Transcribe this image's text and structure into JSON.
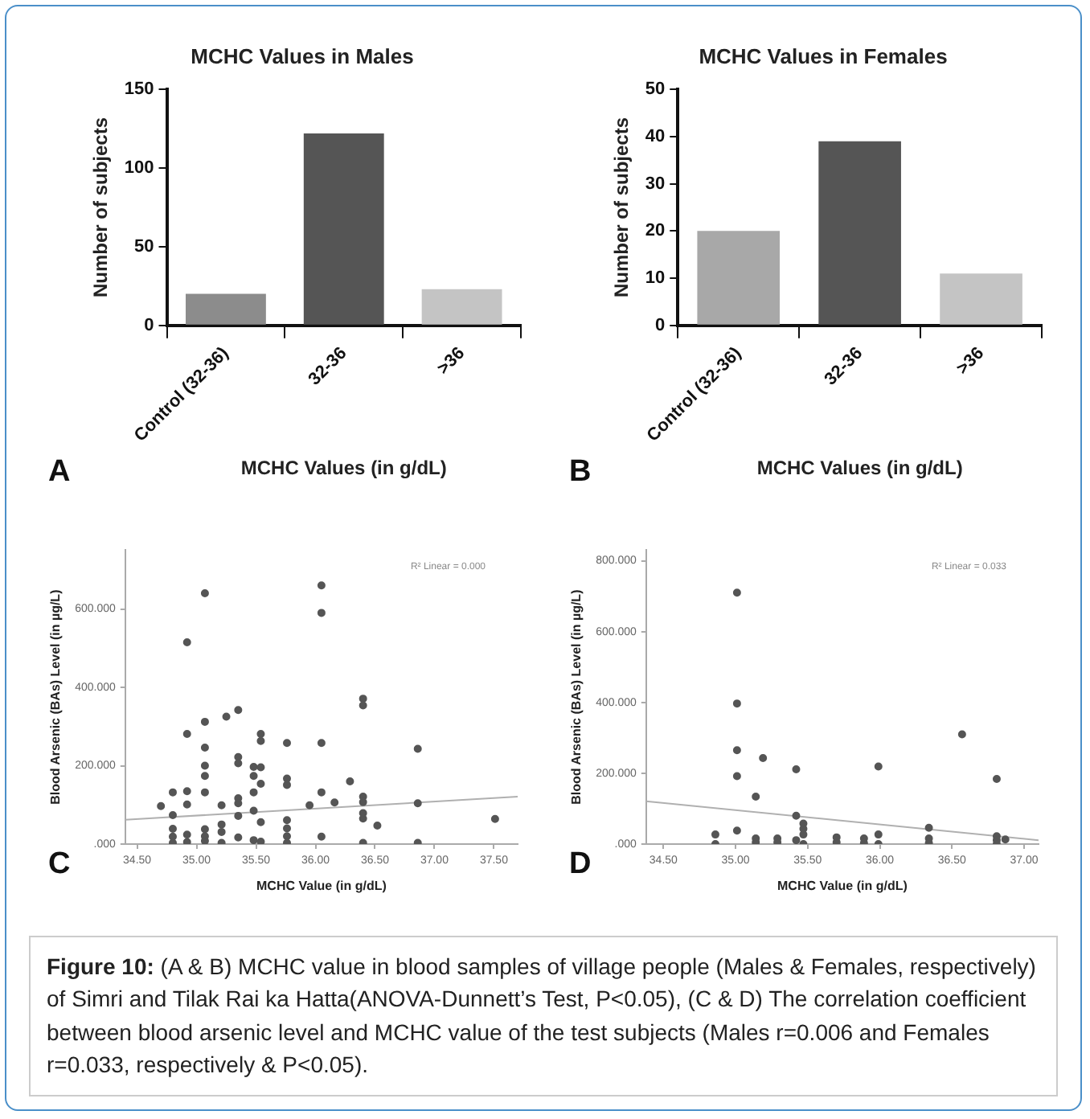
{
  "chart_data": [
    {
      "type": "bar",
      "title": "MCHC Values in Males",
      "xlabel": "MCHC Values (in g/dL)",
      "ylabel": "Number of subjects",
      "categories": [
        "Control (32-36)",
        "32-36",
        ">36"
      ],
      "values": [
        20,
        122,
        23
      ],
      "colors": [
        "#8c8c8c",
        "#555555",
        "#c4c4c4"
      ],
      "ylim": [
        0,
        150
      ],
      "yticks": [
        0,
        50,
        100,
        150
      ],
      "grid": false,
      "legend": false,
      "annotations": [
        "A"
      ]
    },
    {
      "type": "bar",
      "title": "MCHC Values in Females",
      "xlabel": "MCHC Values (in g/dL)",
      "ylabel": "Number of subjects",
      "categories": [
        "Control (32-36)",
        "32-36",
        ">36"
      ],
      "values": [
        20,
        39,
        11
      ],
      "colors": [
        "#a8a8a8",
        "#555555",
        "#c4c4c4"
      ],
      "ylim": [
        0,
        50
      ],
      "yticks": [
        0,
        10,
        20,
        30,
        40,
        50
      ],
      "grid": false,
      "legend": false,
      "annotations": [
        "B"
      ]
    },
    {
      "type": "scatter",
      "xlabel": "MCHC Value (in g/dL)",
      "ylabel": "Blood Arsenic (BAs) Level (in µg/L)",
      "xlim": [
        34.4,
        37.7
      ],
      "xticks": [
        {
          "value": 34.5,
          "label": "34.50"
        },
        {
          "value": 35,
          "label": "35.00"
        },
        {
          "value": 35.5,
          "label": "35.50"
        },
        {
          "value": 36,
          "label": "36.00"
        },
        {
          "value": 36.5,
          "label": "36.50"
        },
        {
          "value": 37,
          "label": "37.00"
        },
        {
          "value": 37.5,
          "label": "37.50"
        }
      ],
      "ylim": [
        0,
        750
      ],
      "yticks": [
        {
          "value": 0,
          "label": ".000"
        },
        {
          "value": 200,
          "label": "200.000"
        },
        {
          "value": 400,
          "label": "400.000"
        },
        {
          "value": 600,
          "label": "600.000"
        }
      ],
      "grid": false,
      "legend": false,
      "series": [
        {
          "type": "scatter",
          "marker": "circle",
          "color": "#555555",
          "x": [
            34.7,
            34.8,
            34.8,
            34.8,
            34.8,
            34.8,
            34.92,
            34.92,
            34.92,
            34.92,
            34.92,
            34.92,
            35.07,
            35.07,
            35.07,
            35.07,
            35.07,
            35.07,
            35.07,
            35.07,
            35.07,
            35.21,
            35.21,
            35.21,
            35.21,
            35.25,
            35.35,
            35.35,
            35.35,
            35.35,
            35.35,
            35.35,
            35.35,
            35.48,
            35.48,
            35.48,
            35.48,
            35.48,
            35.54,
            35.54,
            35.54,
            35.54,
            35.54,
            35.54,
            35.76,
            35.76,
            35.76,
            35.76,
            35.76,
            35.76,
            35.76,
            35.95,
            36.05,
            36.05,
            36.05,
            36.05,
            36.05,
            36.16,
            36.29,
            36.4,
            36.4,
            36.4,
            36.4,
            36.4,
            36.4,
            36.4,
            36.52,
            36.86,
            36.86,
            36.86,
            37.51
          ],
          "values": [
            97,
            132,
            74,
            39,
            19,
            3,
            515,
            281,
            135,
            101,
            24,
            5,
            640,
            312,
            246,
            200,
            174,
            132,
            38,
            20,
            8,
            99,
            50,
            31,
            3,
            325,
            342,
            222,
            206,
            117,
            104,
            72,
            17,
            197,
            174,
            132,
            85,
            10,
            281,
            263,
            196,
            154,
            56,
            6,
            258,
            167,
            151,
            61,
            40,
            20,
            3,
            99,
            660,
            590,
            258,
            132,
            19,
            106,
            160,
            371,
            354,
            121,
            107,
            79,
            65,
            3,
            47,
            243,
            104,
            3,
            64
          ]
        },
        {
          "type": "line",
          "marker": "none",
          "color": "#b0b0b0",
          "x": [
            34.4,
            37.7
          ],
          "values": [
            62,
            121
          ]
        }
      ],
      "annotations": [
        "C",
        "R² Linear = 0.000"
      ]
    },
    {
      "type": "scatter",
      "xlabel": "MCHC Value (in g/dL)",
      "ylabel": "Blood Arsenic (BAs) Level (in µg/L)",
      "xlim": [
        34.38,
        37.1
      ],
      "xticks": [
        {
          "value": 34.5,
          "label": "34.50"
        },
        {
          "value": 35,
          "label": "35.00"
        },
        {
          "value": 35.5,
          "label": "35.50"
        },
        {
          "value": 36,
          "label": "36.00"
        },
        {
          "value": 36.5,
          "label": "36.50"
        },
        {
          "value": 37,
          "label": "37.00"
        }
      ],
      "ylim": [
        0,
        830
      ],
      "yticks": [
        {
          "value": 0,
          "label": ".000"
        },
        {
          "value": 200,
          "label": "200.000"
        },
        {
          "value": 400,
          "label": "400.000"
        },
        {
          "value": 600,
          "label": "600.000"
        },
        {
          "value": 800,
          "label": "800.000"
        }
      ],
      "grid": false,
      "legend": false,
      "series": [
        {
          "type": "scatter",
          "marker": "circle",
          "color": "#555555",
          "x": [
            34.86,
            34.86,
            35.01,
            35.01,
            35.01,
            35.01,
            35.01,
            35.14,
            35.14,
            35.14,
            35.19,
            35.29,
            35.29,
            35.42,
            35.42,
            35.42,
            35.47,
            35.47,
            35.47,
            35.47,
            35.7,
            35.7,
            35.89,
            35.89,
            35.99,
            35.99,
            35.99,
            36.34,
            36.34,
            36.34,
            36.57,
            36.81,
            36.81,
            36.81,
            36.81,
            36.87
          ],
          "values": [
            27,
            0,
            710,
            397,
            265,
            192,
            38,
            134,
            16,
            5,
            243,
            16,
            5,
            211,
            80,
            11,
            58,
            43,
            27,
            0,
            19,
            5,
            16,
            3,
            219,
            27,
            0,
            46,
            16,
            3,
            310,
            184,
            22,
            11,
            0,
            13
          ]
        },
        {
          "type": "line",
          "marker": "none",
          "color": "#b0b0b0",
          "x": [
            34.38,
            37.1
          ],
          "values": [
            121,
            11
          ]
        }
      ],
      "annotations": [
        "D",
        "R² Linear = 0.033",
        "Figure 10: (A & B) MCHC value in blood samples of village people (Males & Females, respectively) of Simri and Tilak Rai ka Hatta(ANOVA-Dunnett’s Test, P<0.05), (C & D) The correlation coefficient between blood arsenic level and MCHC value of the test subjects (Males r=0.006 and Females r=0.033, respectively & P<0.05)."
      ]
    }
  ]
}
